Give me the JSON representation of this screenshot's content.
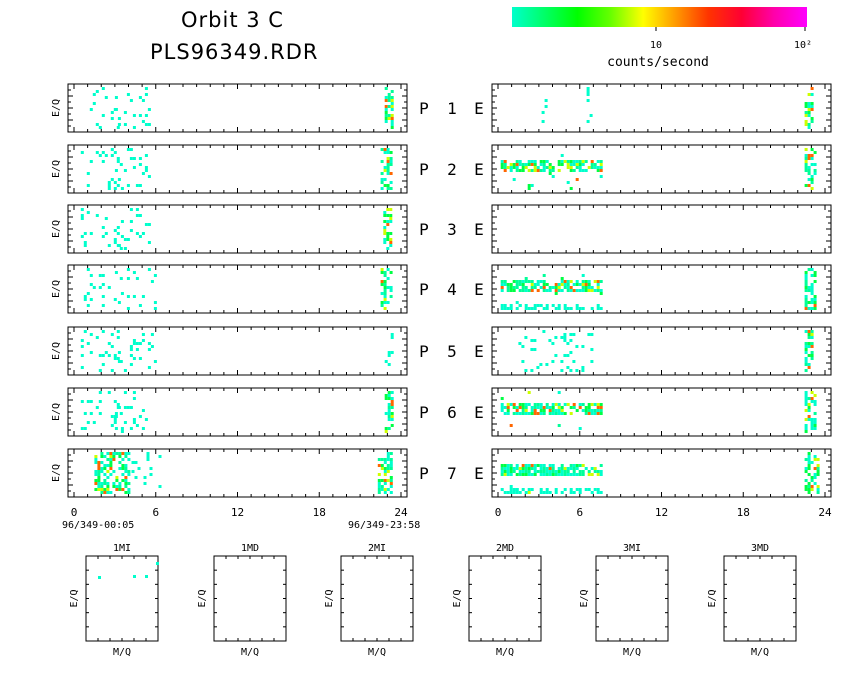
{
  "header": {
    "title_line1": "Orbit 3 C",
    "title_line2": "PLS96349.RDR"
  },
  "colorbar": {
    "colors": [
      "#00ffcc",
      "#00ff66",
      "#00ff00",
      "#66ff00",
      "#ffff00",
      "#ff9900",
      "#ff3300",
      "#ff0033",
      "#ff00aa",
      "#ff00ff"
    ],
    "tick_10": "10",
    "tick_100": "10²",
    "label": "counts/second"
  },
  "chart_data": {
    "type": "heatmap",
    "x_ticks": [
      "0",
      "6",
      "12",
      "18",
      "24"
    ],
    "xlim": [
      0,
      24
    ],
    "panel_ylabel": "E/Q",
    "left_start_label": "96/349-00:05",
    "left_end_label": "96/349-23:58",
    "rows": [
      {
        "p": "P",
        "num": "1",
        "e": "E"
      },
      {
        "p": "P",
        "num": "2",
        "e": "E"
      },
      {
        "p": "P",
        "num": "3",
        "e": "E"
      },
      {
        "p": "P",
        "num": "4",
        "e": "E"
      },
      {
        "p": "P",
        "num": "5",
        "e": "E"
      },
      {
        "p": "P",
        "num": "6",
        "e": "E"
      },
      {
        "p": "P",
        "num": "7",
        "e": "E"
      }
    ],
    "left_activity": [
      [
        [
          0.5,
          3.5,
          "sparse"
        ],
        [
          3.0,
          5.5,
          "sparse"
        ],
        [
          22.8,
          23.3,
          "dense"
        ]
      ],
      [
        [
          0.5,
          3.5,
          "sparse"
        ],
        [
          3.0,
          5.5,
          "sparse"
        ],
        [
          22.5,
          23.3,
          "dense"
        ]
      ],
      [
        [
          0.5,
          3.5,
          "sparse"
        ],
        [
          3.0,
          5.5,
          "sparse"
        ],
        [
          22.7,
          23.3,
          "dense"
        ]
      ],
      [
        [
          0.5,
          3.5,
          "sparse"
        ],
        [
          3.0,
          6.0,
          "sparse"
        ],
        [
          22.5,
          23.3,
          "dense"
        ]
      ],
      [
        [
          0.5,
          3.5,
          "sparse"
        ],
        [
          3.0,
          6.0,
          "sparse"
        ],
        [
          22.8,
          23.3,
          "sparse"
        ]
      ],
      [
        [
          0.5,
          3.5,
          "sparse"
        ],
        [
          3.0,
          5.5,
          "sparse"
        ],
        [
          22.8,
          23.3,
          "dense"
        ]
      ],
      [
        [
          1.5,
          4.0,
          "dense"
        ],
        [
          4.0,
          6.5,
          "sparse"
        ],
        [
          22.3,
          23.3,
          "dense"
        ]
      ]
    ],
    "right_activity": [
      [
        [
          3.2,
          3.6,
          "sparse"
        ],
        [
          6.5,
          6.8,
          "sparse"
        ],
        [
          22.5,
          23.0,
          "dense"
        ]
      ],
      [
        [
          0.2,
          7.5,
          "band"
        ],
        [
          22.5,
          23.3,
          "dense"
        ]
      ],
      [],
      [
        [
          0.2,
          7.5,
          "band"
        ],
        [
          0.2,
          7.5,
          "low"
        ],
        [
          22.5,
          23.3,
          "dense"
        ]
      ],
      [
        [
          1.5,
          7.0,
          "sparse"
        ],
        [
          22.5,
          23.0,
          "dense"
        ]
      ],
      [
        [
          0.2,
          7.5,
          "band"
        ],
        [
          22.5,
          23.3,
          "dense"
        ]
      ],
      [
        [
          0.2,
          7.5,
          "band"
        ],
        [
          0.2,
          7.5,
          "low"
        ],
        [
          22.5,
          23.5,
          "dense"
        ]
      ]
    ],
    "small_panels": [
      {
        "title": "1MI",
        "xlabel": "M/Q",
        "ylabel": "E/Q"
      },
      {
        "title": "1MD",
        "xlabel": "M/Q",
        "ylabel": "E/Q"
      },
      {
        "title": "2MI",
        "xlabel": "M/Q",
        "ylabel": "E/Q"
      },
      {
        "title": "2MD",
        "xlabel": "M/Q",
        "ylabel": "E/Q"
      },
      {
        "title": "3MI",
        "xlabel": "M/Q",
        "ylabel": "E/Q"
      },
      {
        "title": "3MD",
        "xlabel": "M/Q",
        "ylabel": "E/Q"
      }
    ]
  }
}
